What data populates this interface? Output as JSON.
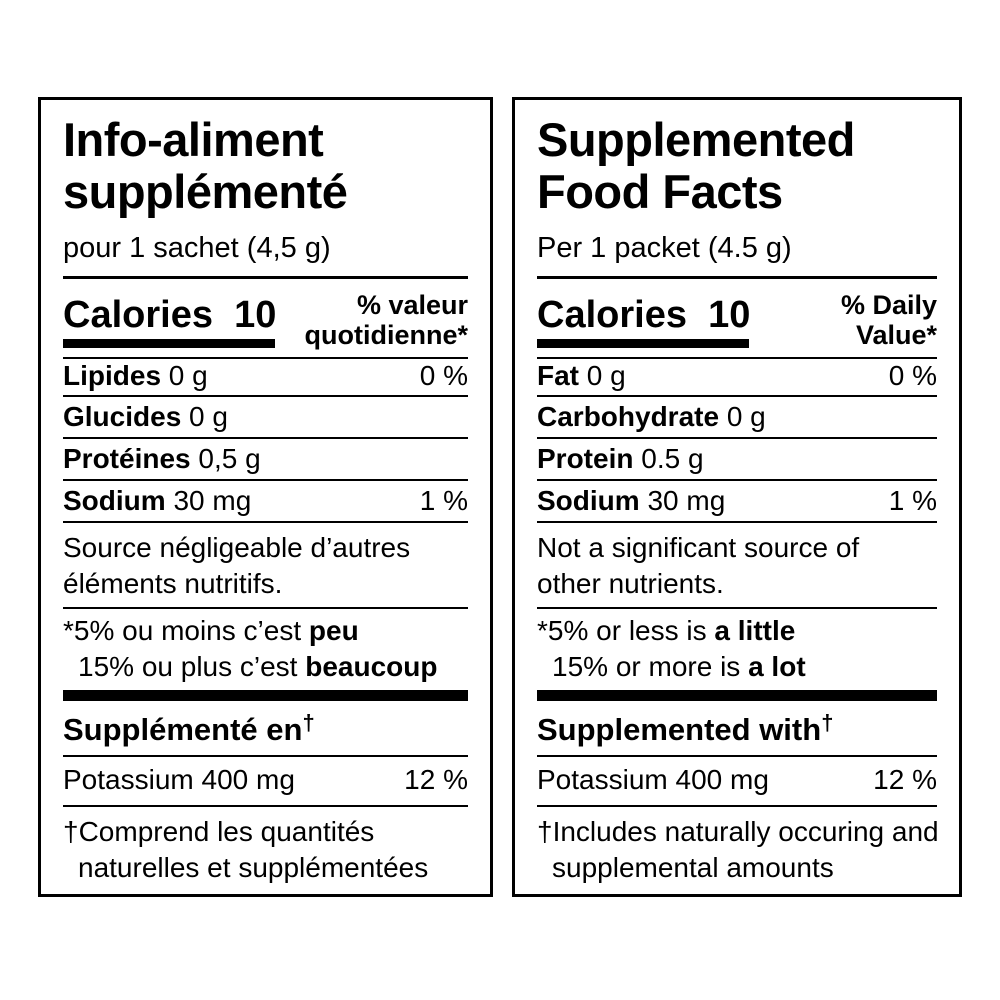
{
  "french": {
    "title_line1": "Info-aliment",
    "title_line2": "supplémenté",
    "serving": "pour 1 sachet (4,5 g)",
    "calories_label": "Calories",
    "calories_value": "10",
    "dv_line1": "% valeur",
    "dv_line2": "quotidienne*",
    "nutrients": [
      {
        "name": "Lipides",
        "amount": "0 g",
        "dv": "0 %"
      },
      {
        "name": "Glucides",
        "amount": "0 g",
        "dv": ""
      },
      {
        "name": "Protéines",
        "amount": "0,5 g",
        "dv": ""
      },
      {
        "name": "Sodium",
        "amount": "30 mg",
        "dv": "1 %"
      }
    ],
    "note_line1": "Source négligeable d’autres",
    "note_line2": "éléments nutritifs.",
    "footnote_line1_pre": "*5% ou moins c’est ",
    "footnote_line1_bold": "peu",
    "footnote_line2_pre": "15% ou plus c’est ",
    "footnote_line2_bold": "beaucoup",
    "supp_heading": "Supplémenté en",
    "dagger": "†",
    "supp_item": "Potassium 400 mg",
    "supp_dv": "12 %",
    "supp_note_line1": "†Comprend les quantités",
    "supp_note_line2": "naturelles et supplémentées"
  },
  "english": {
    "title_line1": "Supplemented",
    "title_line2": "Food Facts",
    "serving": "Per 1 packet (4.5 g)",
    "calories_label": "Calories",
    "calories_value": "10",
    "dv_line1": "% Daily",
    "dv_line2": "Value*",
    "nutrients": [
      {
        "name": "Fat",
        "amount": "0 g",
        "dv": "0 %"
      },
      {
        "name": "Carbohydrate",
        "amount": "0 g",
        "dv": ""
      },
      {
        "name": "Protein",
        "amount": "0.5 g",
        "dv": ""
      },
      {
        "name": "Sodium",
        "amount": "30 mg",
        "dv": "1 %"
      }
    ],
    "note_line1": "Not a significant source of",
    "note_line2": "other nutrients.",
    "footnote_line1_pre": "*5% or less is ",
    "footnote_line1_bold": "a little",
    "footnote_line2_pre": "15% or more is ",
    "footnote_line2_bold": "a lot",
    "supp_heading": "Supplemented with",
    "dagger": "†",
    "supp_item": "Potassium 400 mg",
    "supp_dv": "12 %",
    "supp_note_line1": "†Includes naturally occuring and",
    "supp_note_line2": "supplemental amounts"
  }
}
